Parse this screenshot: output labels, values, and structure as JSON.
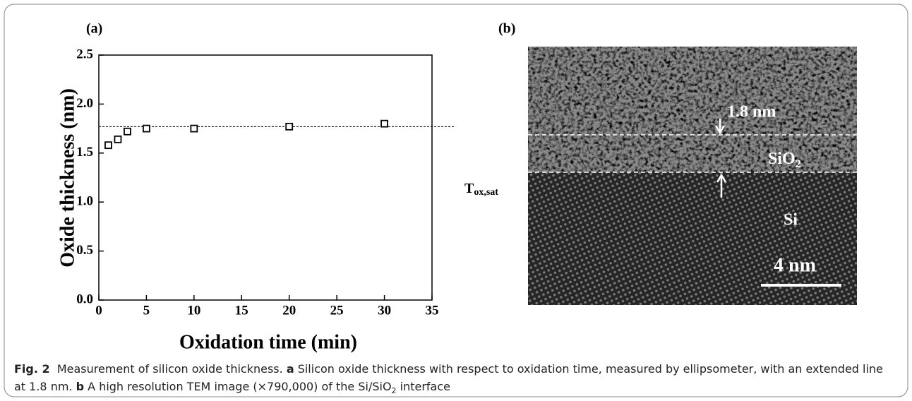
{
  "chart_data": {
    "type": "scatter",
    "panel_label": "(a)",
    "x_label": "Oxidation time (min)",
    "y_label": "Oxide thickness (nm)",
    "x": [
      1,
      2,
      3,
      5,
      10,
      20,
      30
    ],
    "values": [
      1.58,
      1.64,
      1.72,
      1.75,
      1.75,
      1.77,
      1.8
    ],
    "color": "#000000",
    "xlim": [
      0,
      35
    ],
    "xticks": [
      0,
      5,
      10,
      15,
      20,
      25,
      30,
      35
    ],
    "ylim": [
      0,
      2.5
    ],
    "yticks": [
      {
        "value": 0,
        "label": "0.0"
      },
      0.5,
      {
        "value": 1,
        "label": "1.0"
      },
      1.5,
      {
        "value": 2,
        "label": "2.0"
      },
      2.5
    ],
    "reference_line": {
      "value": 1.77,
      "label": "T",
      "label_sub": "ox,sat"
    },
    "grid": false
  },
  "image_panel": {
    "panel_label": "(b)",
    "thickness_label": "1.8 nm",
    "oxide_label": "SiO",
    "oxide_label_sub": "2",
    "substrate_label": "Si",
    "scale_label": "4 nm"
  },
  "caption": {
    "figure": "Fig. 2",
    "title": "Measurement of silicon oxide thickness.",
    "a_label": "a",
    "a_text": "Silicon oxide thickness with respect to oxidation time, measured by ellipsometer, with an extended line at 1.8 nm.",
    "b_label": "b",
    "b_text": "A high resolution TEM image (×790,000) of the Si/SiO",
    "b_sub": "2",
    "b_end": "interface"
  }
}
